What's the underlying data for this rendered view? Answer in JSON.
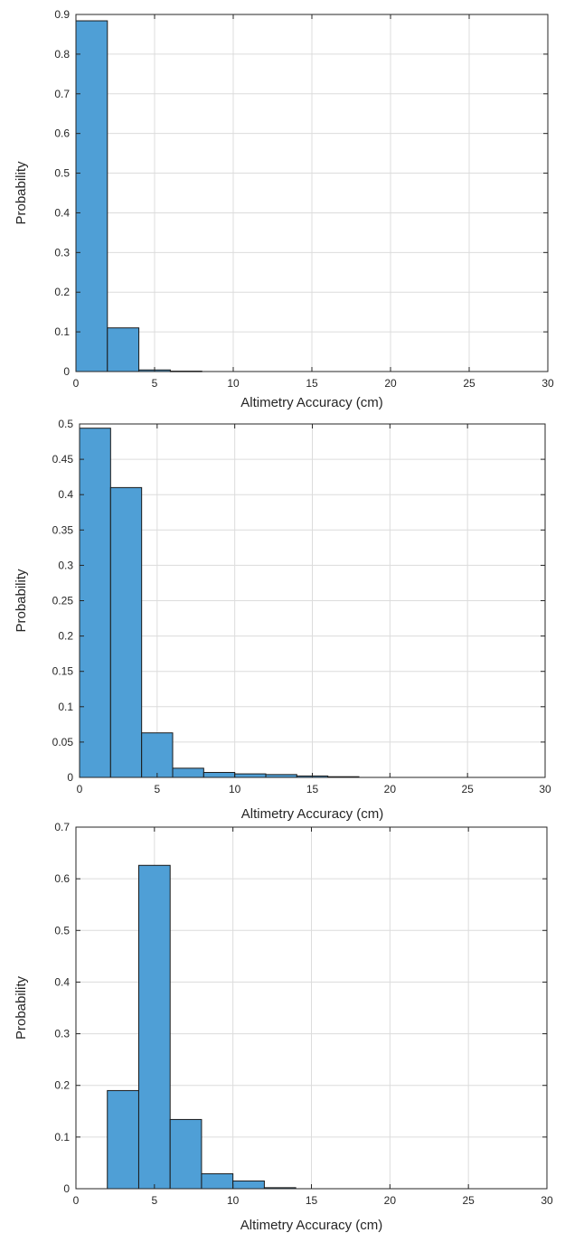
{
  "chart_data": [
    {
      "type": "bar",
      "bin_edges": [
        0,
        2,
        4,
        6,
        8,
        10,
        12,
        14,
        16,
        18,
        20,
        22,
        24,
        26,
        28,
        30
      ],
      "values": [
        0.884,
        0.11,
        0.004,
        0.001,
        0,
        0,
        0,
        0,
        0,
        0,
        0,
        0,
        0,
        0,
        0
      ],
      "xlabel": "Altimetry Accuracy (cm)",
      "ylabel": "Probability",
      "xlim": [
        0,
        30
      ],
      "ylim": [
        0,
        0.9
      ],
      "xticks": [
        "0",
        "5",
        "10",
        "15",
        "20",
        "25",
        "30"
      ],
      "yticks": [
        "0",
        "0.1",
        "0.2",
        "0.3",
        "0.4",
        "0.5",
        "0.6",
        "0.7",
        "0.8",
        "0.9"
      ],
      "grid": true,
      "bar_color": "#4f9fd6"
    },
    {
      "type": "bar",
      "bin_edges": [
        0,
        2,
        4,
        6,
        8,
        10,
        12,
        14,
        16,
        18,
        20,
        22,
        24,
        26,
        28,
        30
      ],
      "values": [
        0.494,
        0.41,
        0.063,
        0.013,
        0.007,
        0.005,
        0.004,
        0.002,
        0.001,
        0,
        0,
        0,
        0,
        0,
        0
      ],
      "xlabel": "Altimetry Accuracy (cm)",
      "ylabel": "Probability",
      "xlim": [
        0,
        30
      ],
      "ylim": [
        0,
        0.5
      ],
      "xticks": [
        "0",
        "5",
        "10",
        "15",
        "20",
        "25",
        "30"
      ],
      "yticks": [
        "0",
        "0.05",
        "0.1",
        "0.15",
        "0.2",
        "0.25",
        "0.3",
        "0.35",
        "0.4",
        "0.45",
        "0.5"
      ],
      "grid": true,
      "bar_color": "#4f9fd6"
    },
    {
      "type": "bar",
      "bin_edges": [
        0,
        2,
        4,
        6,
        8,
        10,
        12,
        14,
        16,
        18,
        20,
        22,
        24,
        26,
        28,
        30
      ],
      "values": [
        0,
        0.19,
        0.626,
        0.134,
        0.029,
        0.015,
        0.002,
        0,
        0,
        0,
        0,
        0,
        0,
        0,
        0
      ],
      "xlabel": "Altimetry Accuracy (cm)",
      "ylabel": "Probability",
      "xlim": [
        0,
        30
      ],
      "ylim": [
        0,
        0.7
      ],
      "xticks": [
        "0",
        "5",
        "10",
        "15",
        "20",
        "25",
        "30"
      ],
      "yticks": [
        "0",
        "0.1",
        "0.2",
        "0.3",
        "0.4",
        "0.5",
        "0.6",
        "0.7"
      ],
      "grid": true,
      "bar_color": "#4f9fd6"
    }
  ]
}
